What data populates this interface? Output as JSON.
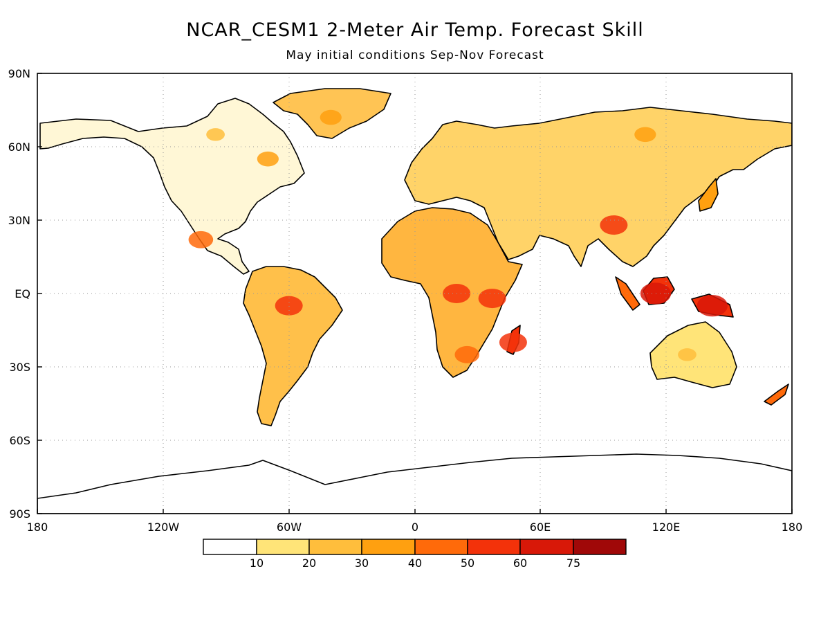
{
  "title": "NCAR_CESM1 2-Meter Air Temp. Forecast Skill",
  "subtitle": "May initial conditions  Sep-Nov Forecast",
  "lat_ticks": [
    "90N",
    "60N",
    "30N",
    "EQ",
    "30S",
    "60S",
    "90S"
  ],
  "lon_ticks": [
    "180",
    "120W",
    "60W",
    "0",
    "60E",
    "120E",
    "180"
  ],
  "colorbar": {
    "labels": [
      "10",
      "20",
      "30",
      "40",
      "50",
      "60",
      "75"
    ],
    "colors": [
      "#ffffff",
      "#ffe478",
      "#ffbe3c",
      "#ffa010",
      "#ff6a0a",
      "#f3320a",
      "#d81808",
      "#a00808"
    ]
  },
  "map": {
    "lon_range": [
      -180,
      180
    ],
    "lat_range": [
      -90,
      90
    ],
    "grid": true,
    "grid_style": "dotted",
    "skill_regions": [
      {
        "name": "Greenland",
        "lon": -40,
        "lat": 72,
        "level": 3
      },
      {
        "name": "Northern Canada",
        "lon": -95,
        "lat": 65,
        "level": 2
      },
      {
        "name": "Quebec",
        "lon": -70,
        "lat": 55,
        "level": 3
      },
      {
        "name": "Mexico",
        "lon": -102,
        "lat": 22,
        "level": 4
      },
      {
        "name": "Amazon",
        "lon": -60,
        "lat": -5,
        "level": 5
      },
      {
        "name": "Central Africa",
        "lon": 20,
        "lat": 0,
        "level": 5
      },
      {
        "name": "East Africa",
        "lon": 37,
        "lat": -2,
        "level": 5
      },
      {
        "name": "Southern Africa",
        "lon": 25,
        "lat": -25,
        "level": 4
      },
      {
        "name": "Madagascar",
        "lon": 47,
        "lat": -20,
        "level": 5
      },
      {
        "name": "Tibet / SE Asia",
        "lon": 95,
        "lat": 28,
        "level": 5
      },
      {
        "name": "Borneo",
        "lon": 115,
        "lat": 0,
        "level": 6
      },
      {
        "name": "New Guinea",
        "lon": 142,
        "lat": -5,
        "level": 6
      },
      {
        "name": "Siberia",
        "lon": 110,
        "lat": 65,
        "level": 3
      },
      {
        "name": "Australia",
        "lon": 130,
        "lat": -25,
        "level": 2
      }
    ]
  }
}
